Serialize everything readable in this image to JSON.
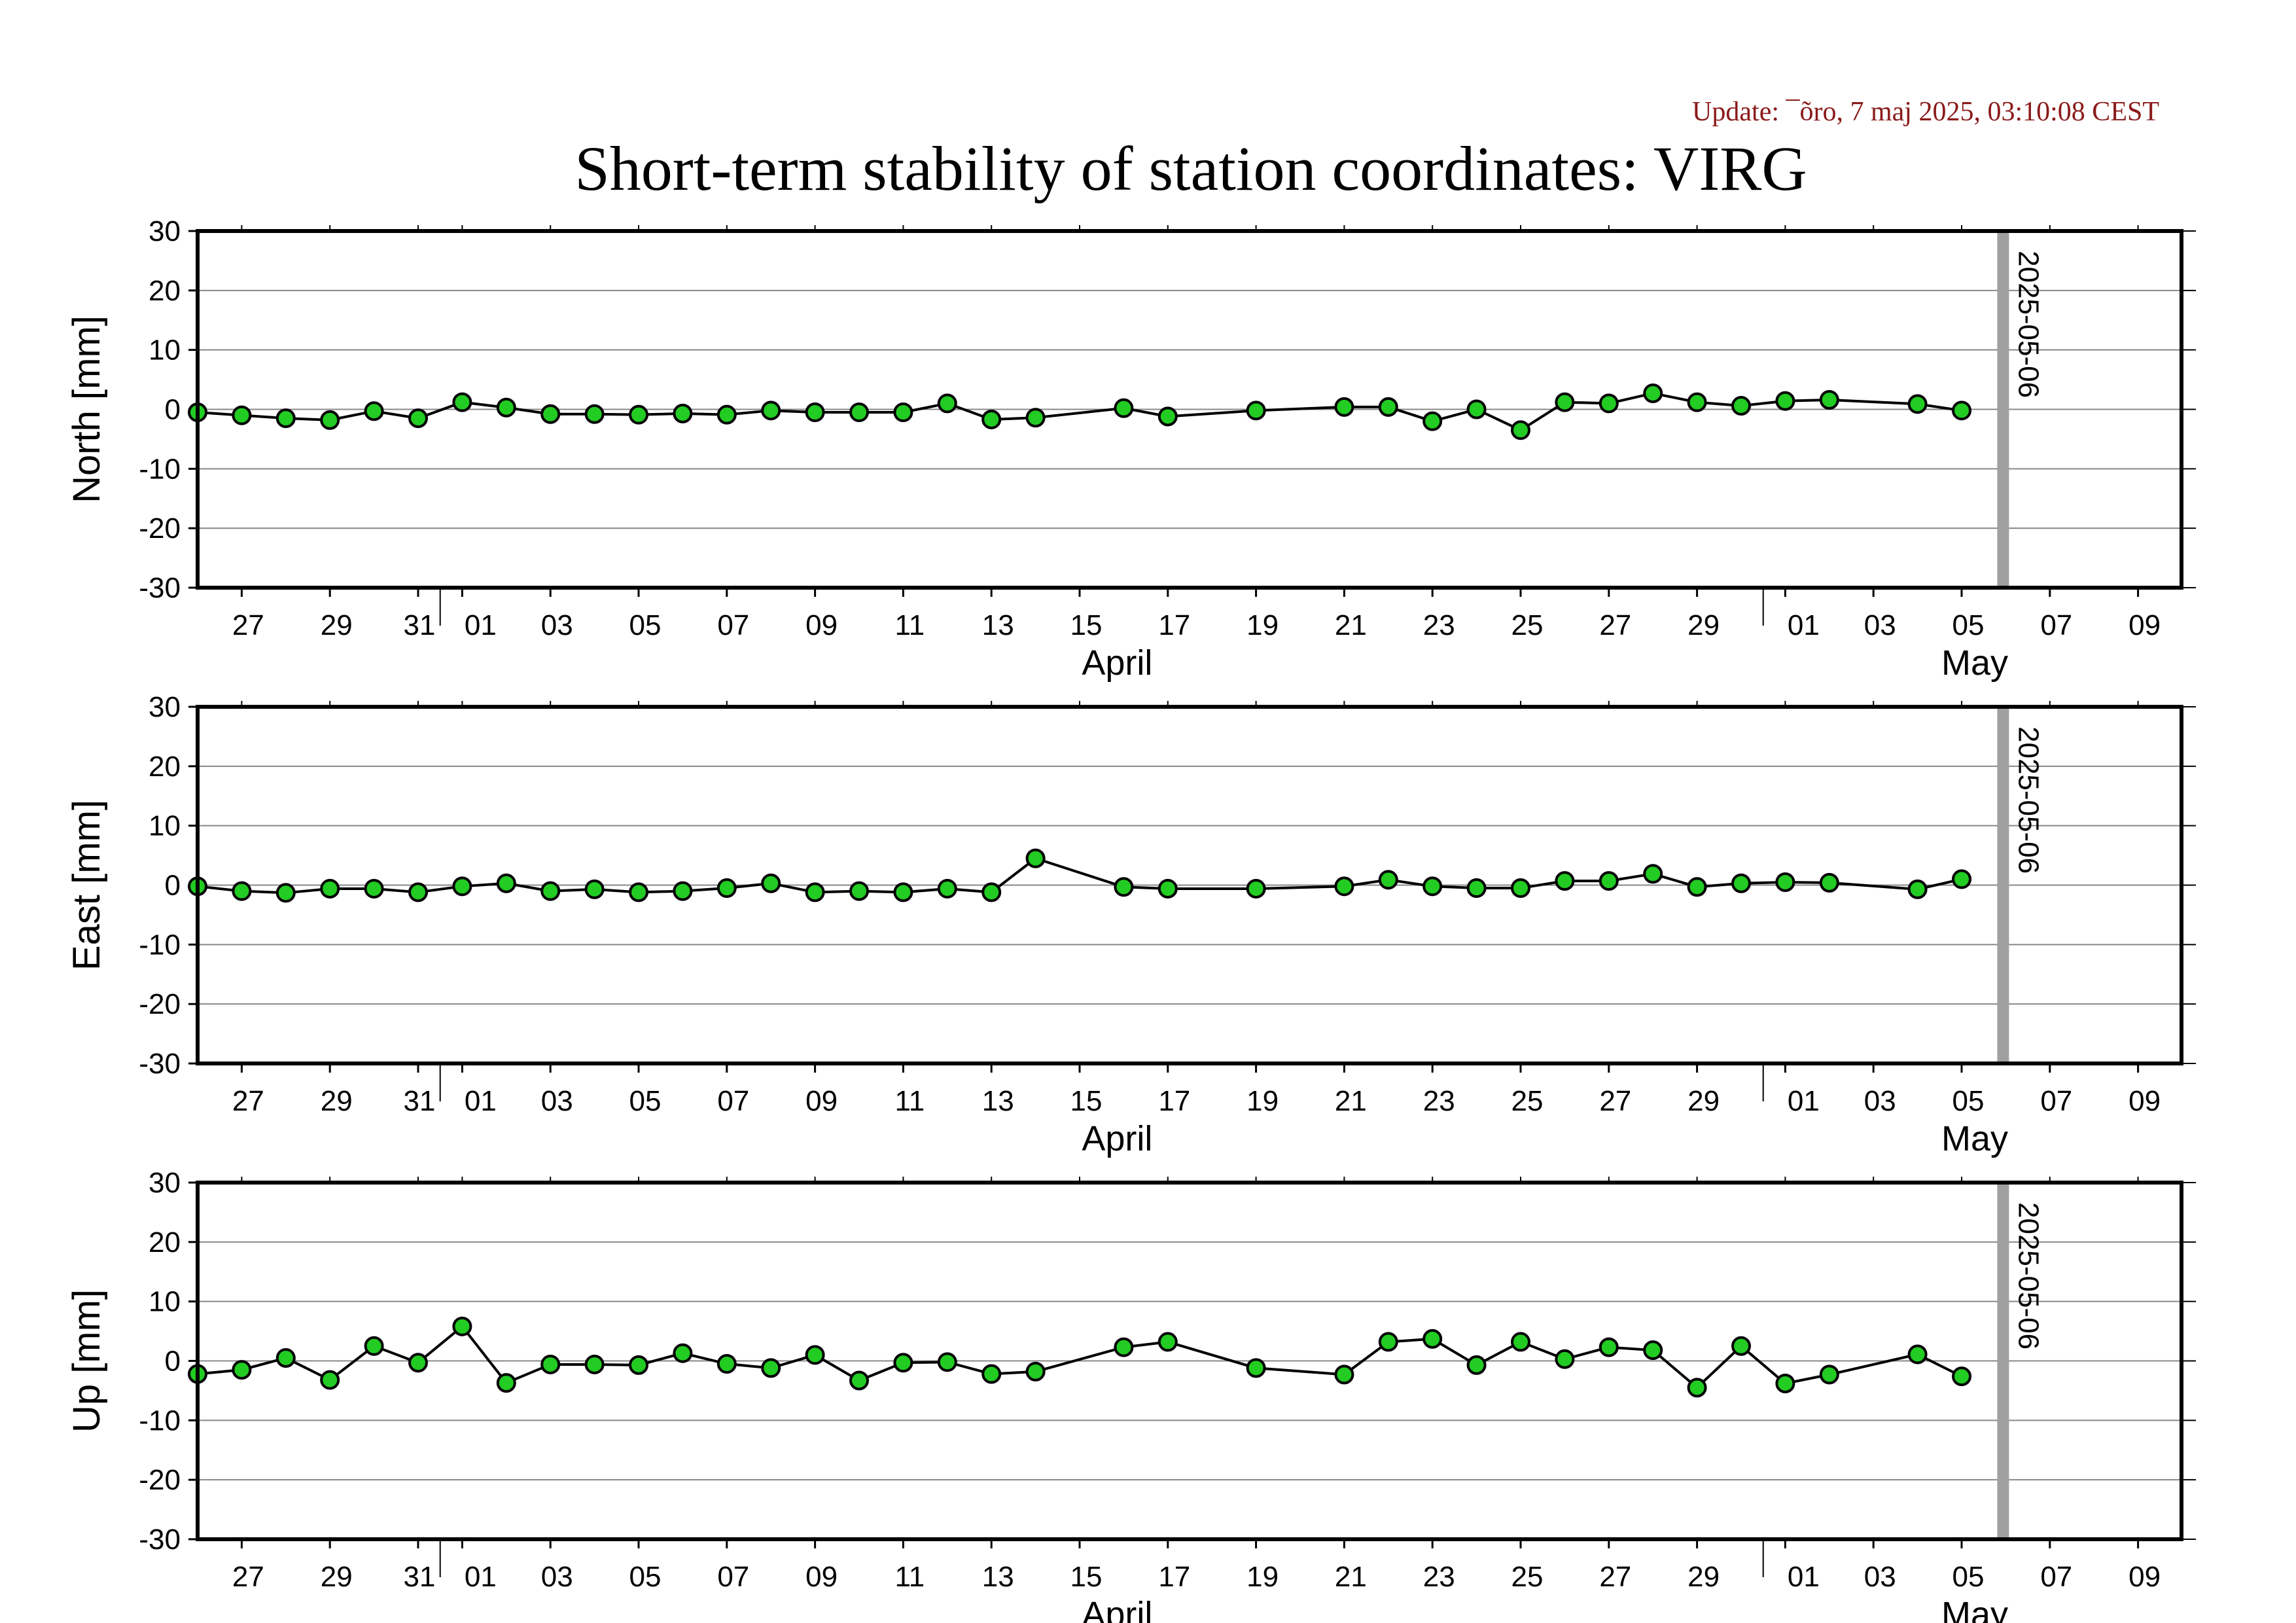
{
  "header": {
    "update_text": "Update: ¯õro, 7 maj 2025, 03:10:08 CEST",
    "title": "Short-term stability of station coordinates: VIRG"
  },
  "colors": {
    "marker_fill": "#22cc22",
    "marker_stroke": "#000000",
    "line": "#000000",
    "grid": "#888888",
    "update_text": "#8b1a1a",
    "marker_bar": "#a0a0a0"
  },
  "chart_data": [
    {
      "type": "line",
      "name": "north",
      "ylabel": "North [mm]",
      "ylim": [
        -30,
        30
      ],
      "yticks": [
        30,
        20,
        10,
        0,
        -10,
        -20,
        -30
      ],
      "xlim": [
        "2025-03-26",
        "2025-05-10"
      ],
      "x_tick_labels": [
        "27",
        "29",
        "31",
        "01",
        "03",
        "05",
        "07",
        "09",
        "11",
        "13",
        "15",
        "17",
        "19",
        "21",
        "23",
        "25",
        "27",
        "29",
        "01",
        "03",
        "05",
        "07",
        "09"
      ],
      "month_labels": [
        "April",
        "May"
      ],
      "marker_line_label": "2025-05-06",
      "grid": true,
      "x": [
        "2025-03-26",
        "2025-03-27",
        "2025-03-28",
        "2025-03-29",
        "2025-03-30",
        "2025-03-31",
        "2025-04-01",
        "2025-04-02",
        "2025-04-03",
        "2025-04-04",
        "2025-04-05",
        "2025-04-06",
        "2025-04-07",
        "2025-04-08",
        "2025-04-09",
        "2025-04-10",
        "2025-04-11",
        "2025-04-12",
        "2025-04-13",
        "2025-04-14",
        "2025-04-16",
        "2025-04-17",
        "2025-04-19",
        "2025-04-21",
        "2025-04-22",
        "2025-04-23",
        "2025-04-24",
        "2025-04-25",
        "2025-04-26",
        "2025-04-27",
        "2025-04-28",
        "2025-04-29",
        "2025-04-30",
        "2025-05-01",
        "2025-05-02",
        "2025-05-04",
        "2025-05-05"
      ],
      "y": [
        -0.5,
        -1,
        -1.5,
        -1.8,
        -0.3,
        -1.5,
        1.2,
        0.3,
        -0.8,
        -0.8,
        -0.9,
        -0.7,
        -0.9,
        -0.2,
        -0.5,
        -0.5,
        -0.5,
        1,
        -1.7,
        -1.4,
        0.2,
        -1.2,
        -0.2,
        0.4,
        0.4,
        -2,
        0,
        -3.5,
        1.2,
        1,
        2.7,
        1.2,
        0.6,
        1.4,
        1.6,
        0.9,
        -0.2
      ]
    },
    {
      "type": "line",
      "name": "east",
      "ylabel": "East [mm]",
      "ylim": [
        -30,
        30
      ],
      "yticks": [
        30,
        20,
        10,
        0,
        -10,
        -20,
        -30
      ],
      "xlim": [
        "2025-03-26",
        "2025-05-10"
      ],
      "x_tick_labels": [
        "27",
        "29",
        "31",
        "01",
        "03",
        "05",
        "07",
        "09",
        "11",
        "13",
        "15",
        "17",
        "19",
        "21",
        "23",
        "25",
        "27",
        "29",
        "01",
        "03",
        "05",
        "07",
        "09"
      ],
      "month_labels": [
        "April",
        "May"
      ],
      "marker_line_label": "2025-05-06",
      "grid": true,
      "x": [
        "2025-03-26",
        "2025-03-27",
        "2025-03-28",
        "2025-03-29",
        "2025-03-30",
        "2025-03-31",
        "2025-04-01",
        "2025-04-02",
        "2025-04-03",
        "2025-04-04",
        "2025-04-05",
        "2025-04-06",
        "2025-04-07",
        "2025-04-08",
        "2025-04-09",
        "2025-04-10",
        "2025-04-11",
        "2025-04-12",
        "2025-04-13",
        "2025-04-14",
        "2025-04-16",
        "2025-04-17",
        "2025-04-19",
        "2025-04-21",
        "2025-04-22",
        "2025-04-23",
        "2025-04-24",
        "2025-04-25",
        "2025-04-26",
        "2025-04-27",
        "2025-04-28",
        "2025-04-29",
        "2025-04-30",
        "2025-05-01",
        "2025-05-02",
        "2025-05-04",
        "2025-05-05"
      ],
      "y": [
        -0.2,
        -1,
        -1.3,
        -0.6,
        -0.6,
        -1.2,
        -0.2,
        0.3,
        -1,
        -0.7,
        -1.2,
        -1,
        -0.5,
        0.3,
        -1.2,
        -1,
        -1.2,
        -0.6,
        -1.2,
        4.5,
        -0.3,
        -0.6,
        -0.6,
        -0.2,
        0.9,
        -0.2,
        -0.5,
        -0.5,
        0.7,
        0.7,
        1.9,
        -0.3,
        0.3,
        0.5,
        0.4,
        -0.7,
        1
      ]
    },
    {
      "type": "line",
      "name": "up",
      "ylabel": "Up [mm]",
      "ylim": [
        -30,
        30
      ],
      "yticks": [
        30,
        20,
        10,
        0,
        -10,
        -20,
        -30
      ],
      "xlim": [
        "2025-03-26",
        "2025-05-10"
      ],
      "x_tick_labels": [
        "27",
        "29",
        "31",
        "01",
        "03",
        "05",
        "07",
        "09",
        "11",
        "13",
        "15",
        "17",
        "19",
        "21",
        "23",
        "25",
        "27",
        "29",
        "01",
        "03",
        "05",
        "07",
        "09"
      ],
      "month_labels": [
        "April",
        "May"
      ],
      "marker_line_label": "2025-05-06",
      "grid": true,
      "x": [
        "2025-03-26",
        "2025-03-27",
        "2025-03-28",
        "2025-03-29",
        "2025-03-30",
        "2025-03-31",
        "2025-04-01",
        "2025-04-02",
        "2025-04-03",
        "2025-04-04",
        "2025-04-05",
        "2025-04-06",
        "2025-04-07",
        "2025-04-08",
        "2025-04-09",
        "2025-04-10",
        "2025-04-11",
        "2025-04-12",
        "2025-04-13",
        "2025-04-14",
        "2025-04-16",
        "2025-04-17",
        "2025-04-19",
        "2025-04-21",
        "2025-04-22",
        "2025-04-23",
        "2025-04-24",
        "2025-04-25",
        "2025-04-26",
        "2025-04-27",
        "2025-04-28",
        "2025-04-29",
        "2025-04-30",
        "2025-05-01",
        "2025-05-02",
        "2025-05-04",
        "2025-05-05"
      ],
      "y": [
        -2.2,
        -1.5,
        0.5,
        -3.2,
        2.5,
        -0.3,
        5.8,
        -3.7,
        -0.6,
        -0.6,
        -0.7,
        1.3,
        -0.5,
        -1.2,
        1,
        -3.3,
        -0.3,
        -0.2,
        -2.2,
        -1.8,
        2.3,
        3.2,
        -1.2,
        -2.3,
        3.2,
        3.7,
        -0.7,
        3.2,
        0.3,
        2.3,
        1.8,
        -4.5,
        2.5,
        -3.8,
        -2.3,
        1.1,
        -2.6
      ]
    }
  ]
}
